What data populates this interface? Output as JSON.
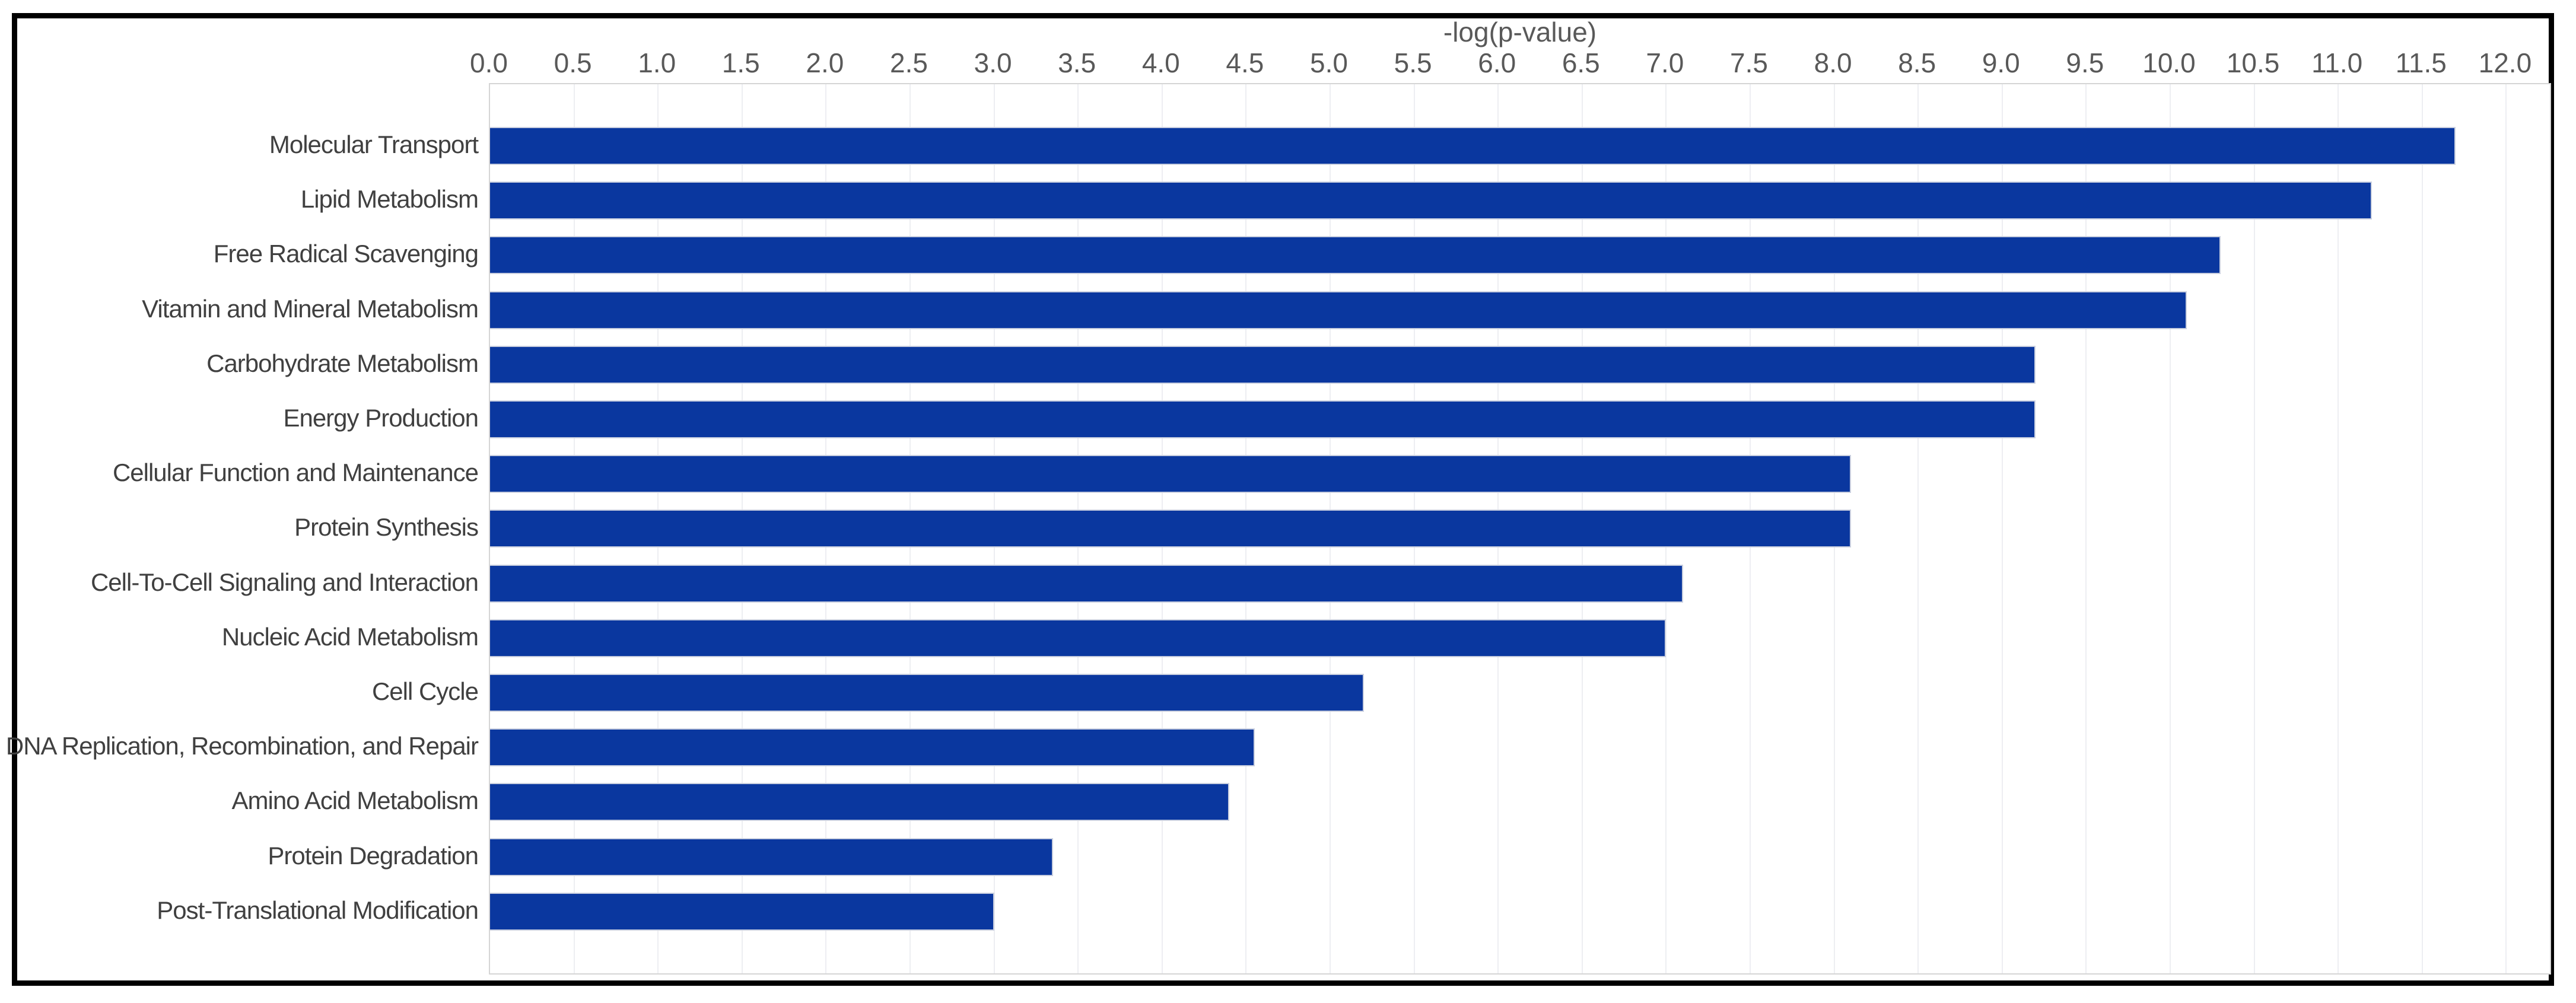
{
  "figure": {
    "background_color": "#ffffff",
    "frame_border_color": "#000000"
  },
  "chart_data": {
    "type": "bar",
    "orientation": "horizontal",
    "title": "-log(p-value)",
    "xlabel": "-log(p-value)",
    "ylabel": "",
    "categories": [
      "Molecular Transport",
      "Lipid Metabolism",
      "Free Radical Scavenging",
      "Vitamin and Mineral Metabolism",
      "Carbohydrate Metabolism",
      "Energy Production",
      "Cellular Function and Maintenance",
      "Protein Synthesis",
      "Cell-To-Cell Signaling and Interaction",
      "Nucleic Acid Metabolism",
      "Cell Cycle",
      "DNA Replication, Recombination, and Repair",
      "Amino Acid Metabolism",
      "Protein Degradation",
      "Post-Translational Modification"
    ],
    "values": [
      11.7,
      11.2,
      10.3,
      10.1,
      9.2,
      9.2,
      8.1,
      8.1,
      7.1,
      7.0,
      5.2,
      4.55,
      4.4,
      3.35,
      3.0
    ],
    "xlim": [
      0,
      12
    ],
    "x_tick_step": 0.5,
    "x_ticks": [
      "0.0",
      "0.5",
      "1.0",
      "1.5",
      "2.0",
      "2.5",
      "3.0",
      "3.5",
      "4.0",
      "4.5",
      "5.0",
      "5.5",
      "6.0",
      "6.5",
      "7.0",
      "7.5",
      "8.0",
      "8.5",
      "9.0",
      "9.5",
      "10.0",
      "10.5",
      "11.0",
      "11.5",
      "12.0"
    ],
    "grid": "vertical",
    "legend": "none",
    "bar_color": "#0a379f",
    "bar_border_color": "#c9cfdf",
    "axis_text_color": "#595959",
    "category_text_color": "#404040",
    "plot_border_color": "#d5d5d5",
    "gridline_color": "#edeef2"
  }
}
